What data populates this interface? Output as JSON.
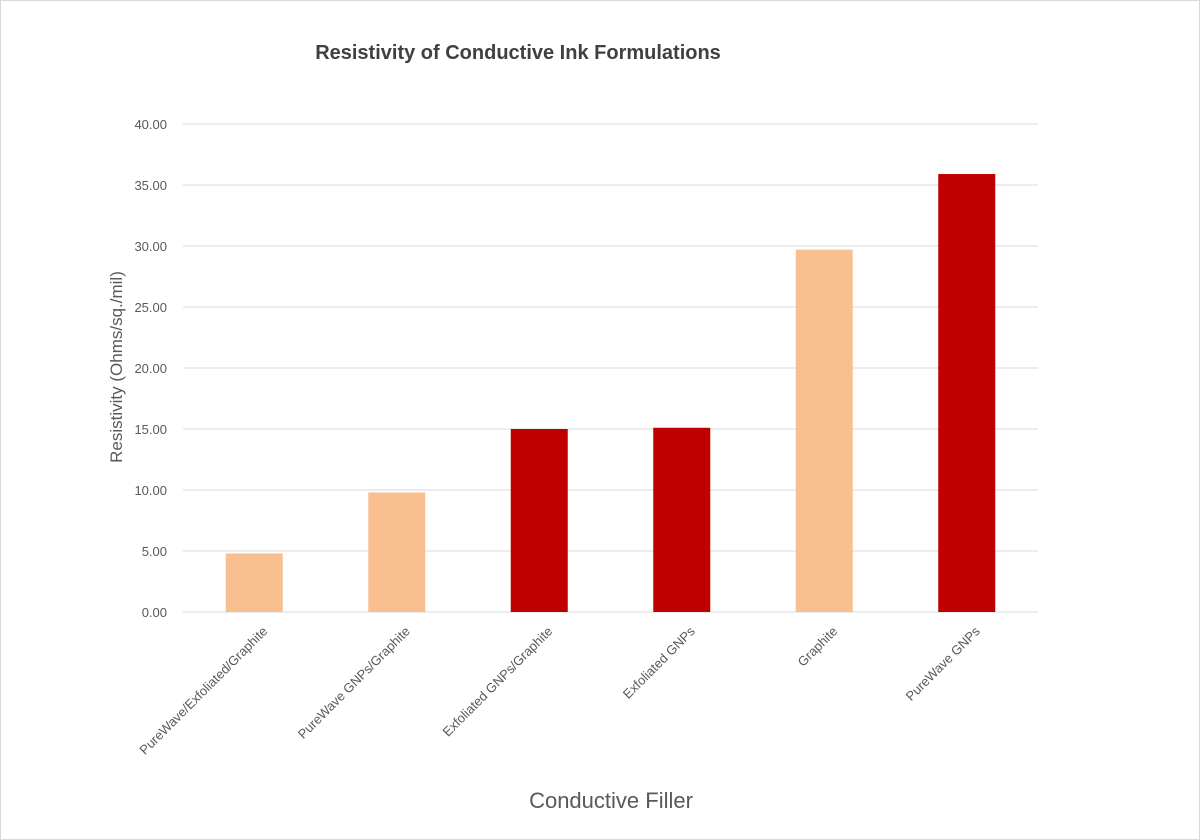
{
  "chart_data": {
    "type": "bar",
    "title": "Resistivity of Conductive Ink Formulations",
    "xlabel": "Conductive  Filler",
    "ylabel": "Resistivity (Ohms/sq./mil)",
    "ylim": [
      0,
      40
    ],
    "yticks": [
      "0.00",
      "5.00",
      "10.00",
      "15.00",
      "20.00",
      "25.00",
      "30.00",
      "35.00",
      "40.00"
    ],
    "categories": [
      "PureWave/Exfoliated/Graphite",
      "PureWave GNPs/Graphite",
      "Exfoliated GNPs/Graphite",
      "Exfoliated GNPs",
      "Graphite",
      "PureWave GNPs"
    ],
    "values": [
      4.8,
      9.8,
      15.0,
      15.1,
      29.7,
      35.9
    ],
    "bar_colors": [
      "#f8c090",
      "#f8c090",
      "#c00000",
      "#c00000",
      "#f8c090",
      "#c00000"
    ],
    "grid": true,
    "legend": "none"
  }
}
